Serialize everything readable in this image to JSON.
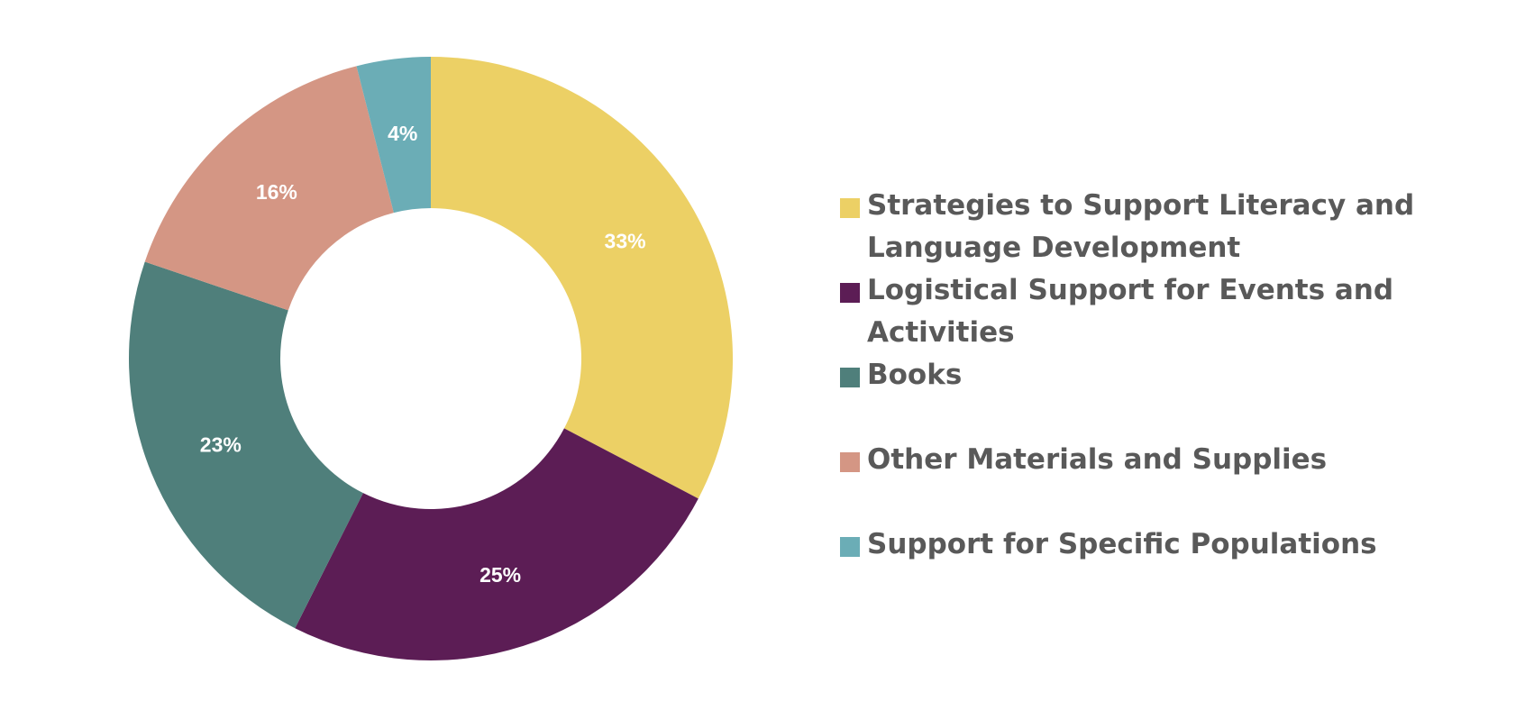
{
  "chart_data": {
    "type": "pie",
    "subtype": "donut",
    "title": "",
    "legend_position": "right",
    "slices": [
      {
        "label": "Strategies to Support Literacy and Language Development",
        "value": 33,
        "display": "33%",
        "color": "#ECD065"
      },
      {
        "label": "Logistical Support for Events and Activities",
        "value": 25,
        "display": "25%",
        "color": "#5C1D55"
      },
      {
        "label": "Books",
        "value": 23,
        "display": "23%",
        "color": "#4F7F7B"
      },
      {
        "label": "Other Materials and Supplies",
        "value": 16,
        "display": "16%",
        "color": "#D49684"
      },
      {
        "label": "Support for Specific Populations",
        "value": 4,
        "display": "4%",
        "color": "#6BADB6"
      }
    ]
  }
}
